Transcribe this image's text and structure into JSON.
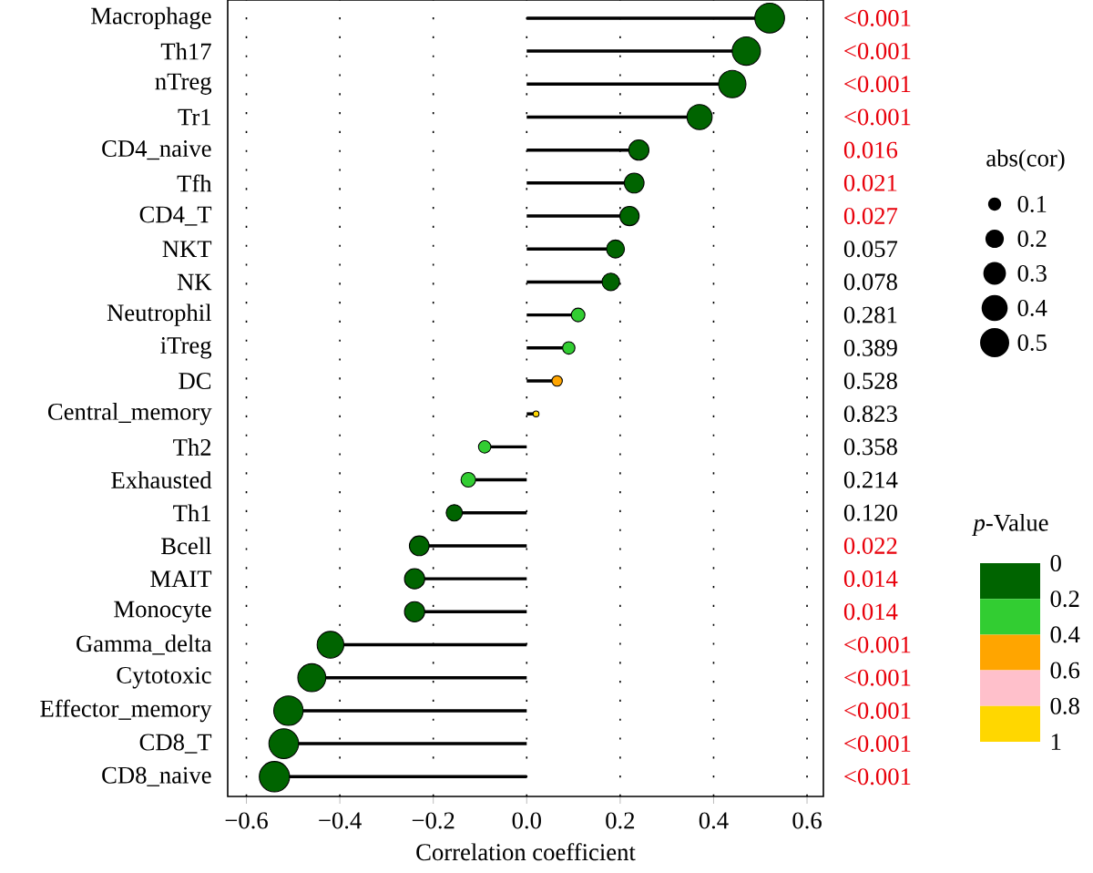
{
  "chart_data": {
    "type": "lollipop",
    "orientation": "horizontal",
    "marker": "circle",
    "grid": "x",
    "categories": [
      "Macrophage",
      "Th17",
      "nTreg",
      "Tr1",
      "CD4_naive",
      "Tfh",
      "CD4_T",
      "NKT",
      "NK",
      "Neutrophil",
      "iTreg",
      "DC",
      "Central_memory",
      "Th2",
      "Exhausted",
      "Th1",
      "Bcell",
      "MAIT",
      "Monocyte",
      "Gamma_delta",
      "Cytotoxic",
      "Effector_memory",
      "CD8_T",
      "CD8_naive"
    ],
    "values": [
      0.52,
      0.47,
      0.44,
      0.37,
      0.24,
      0.23,
      0.22,
      0.19,
      0.18,
      0.11,
      0.09,
      0.065,
      0.02,
      -0.09,
      -0.125,
      -0.155,
      -0.23,
      -0.24,
      -0.24,
      -0.42,
      -0.46,
      -0.51,
      -0.52,
      -0.54
    ],
    "sizes": [
      0.52,
      0.47,
      0.44,
      0.37,
      0.24,
      0.23,
      0.22,
      0.19,
      0.18,
      0.11,
      0.09,
      0.065,
      0.02,
      0.09,
      0.125,
      0.155,
      0.23,
      0.24,
      0.24,
      0.42,
      0.46,
      0.51,
      0.52,
      0.54
    ],
    "size_legend": [
      0.1,
      0.2,
      0.3,
      0.4,
      0.5
    ],
    "colors": [
      "#006400",
      "#006400",
      "#006400",
      "#006400",
      "#006400",
      "#006400",
      "#006400",
      "#006400",
      "#006400",
      "#32cd32",
      "#32cd32",
      "#ffa500",
      "#ffd700",
      "#32cd32",
      "#32cd32",
      "#006400",
      "#006400",
      "#006400",
      "#006400",
      "#006400",
      "#006400",
      "#006400",
      "#006400",
      "#006400"
    ],
    "xlim": [
      -0.64,
      0.635
    ],
    "xticks": [
      {
        "value": -0.6,
        "label": "−0.6"
      },
      {
        "value": -0.4,
        "label": "−0.4"
      },
      {
        "value": -0.2,
        "label": "−0.2"
      },
      {
        "value": 0,
        "label": "0.0"
      },
      {
        "value": 0.2,
        "label": "0.2"
      },
      {
        "value": 0.4,
        "label": "0.4"
      },
      {
        "value": 0.6,
        "label": "0.6"
      }
    ],
    "xlabel": "Correlation coefficient",
    "legend_title": "abs(cor)",
    "clabel": "*p*-Value",
    "clim": [
      0,
      1
    ],
    "cticks": [
      0,
      0.2,
      0.4,
      0.6,
      0.8,
      1
    ],
    "annotations": [
      "<0.001",
      "<0.001",
      "<0.001",
      "<0.001",
      "0.016",
      "0.021",
      "0.027",
      "0.057",
      "0.078",
      "0.281",
      "0.389",
      "0.528",
      "0.823",
      "0.358",
      "0.214",
      "0.120",
      "0.022",
      "0.014",
      "0.014",
      "<0.001",
      "<0.001",
      "<0.001",
      "<0.001",
      "<0.001"
    ]
  }
}
